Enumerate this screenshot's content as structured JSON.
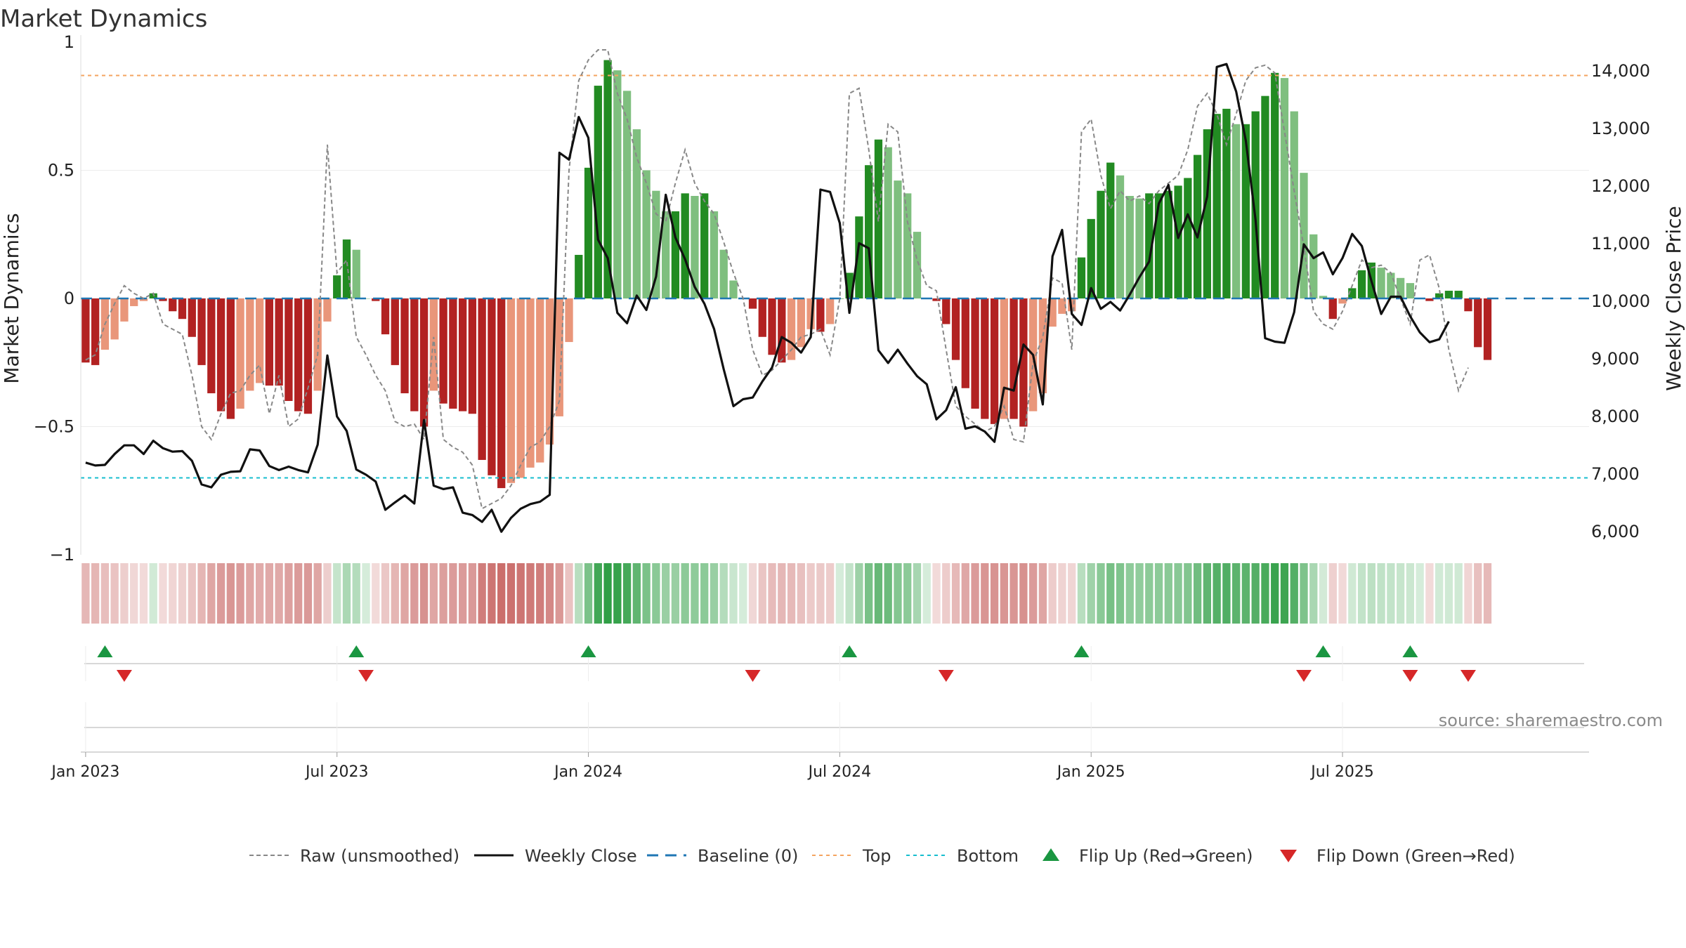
{
  "chart_data": {
    "type": "bar",
    "title": "Market Dynamics",
    "ylabel_left": "Market Dynamics",
    "ylabel_right": "Weekly Close Price",
    "source": "source: sharemaestro.com",
    "left_axis": {
      "ylim": [
        -1,
        1
      ],
      "ticks": [
        {
          "v": 1,
          "label": "1"
        },
        {
          "v": 0.5,
          "label": "0.5"
        },
        {
          "v": 0,
          "label": "0"
        },
        {
          "v": -0.5,
          "label": "−0.5"
        },
        {
          "v": -1,
          "label": "−1"
        }
      ]
    },
    "right_axis": {
      "ylim": [
        5600,
        14500
      ],
      "ticks": [
        {
          "v": 14000,
          "label": "14,000"
        },
        {
          "v": 13000,
          "label": "13,000"
        },
        {
          "v": 12000,
          "label": "12,000"
        },
        {
          "v": 11000,
          "label": "11,000"
        },
        {
          "v": 10000,
          "label": "10,000"
        },
        {
          "v": 9000,
          "label": "9,000"
        },
        {
          "v": 8000,
          "label": "8,000"
        },
        {
          "v": 7000,
          "label": "7,000"
        },
        {
          "v": 6000,
          "label": "6,000"
        }
      ]
    },
    "x_axis": {
      "type": "date",
      "start": "2023-01-02",
      "weeks": 156,
      "ticks": [
        {
          "week": 0,
          "label": "Jan 2023"
        },
        {
          "week": 26,
          "label": "Jul 2023"
        },
        {
          "week": 52,
          "label": "Jan 2024"
        },
        {
          "week": 78,
          "label": "Jul 2024"
        },
        {
          "week": 104,
          "label": "Jan 2025"
        },
        {
          "week": 130,
          "label": "Jul 2025"
        }
      ]
    },
    "reference_lines": {
      "top": 0.87,
      "bottom": -0.7,
      "baseline": 0
    },
    "series": [
      {
        "name": "Market Dynamics (smoothed)",
        "type": "bar",
        "values": [
          -0.25,
          -0.26,
          -0.2,
          -0.16,
          -0.09,
          -0.03,
          -0.01,
          0.02,
          -0.01,
          -0.05,
          -0.08,
          -0.15,
          -0.26,
          -0.37,
          -0.44,
          -0.47,
          -0.43,
          -0.36,
          -0.33,
          -0.34,
          -0.34,
          -0.4,
          -0.44,
          -0.45,
          -0.36,
          -0.09,
          0.09,
          0.23,
          0.19,
          0.0,
          -0.01,
          -0.14,
          -0.26,
          -0.37,
          -0.44,
          -0.5,
          -0.36,
          -0.41,
          -0.43,
          -0.44,
          -0.45,
          -0.63,
          -0.69,
          -0.74,
          -0.72,
          -0.7,
          -0.66,
          -0.64,
          -0.57,
          -0.46,
          -0.17,
          0.17,
          0.51,
          0.83,
          0.93,
          0.89,
          0.81,
          0.66,
          0.5,
          0.42,
          0.34,
          0.34,
          0.41,
          0.4,
          0.41,
          0.34,
          0.19,
          0.07,
          0.0,
          -0.04,
          -0.15,
          -0.22,
          -0.25,
          -0.24,
          -0.19,
          -0.12,
          -0.13,
          -0.1,
          0.0,
          0.1,
          0.32,
          0.52,
          0.62,
          0.59,
          0.46,
          0.41,
          0.26,
          0.0,
          -0.01,
          -0.1,
          -0.24,
          -0.35,
          -0.43,
          -0.47,
          -0.49,
          -0.47,
          -0.47,
          -0.5,
          -0.44,
          -0.37,
          -0.11,
          -0.06,
          -0.05,
          0.16,
          0.31,
          0.42,
          0.53,
          0.48,
          0.4,
          0.39,
          0.41,
          0.41,
          0.42,
          0.44,
          0.47,
          0.56,
          0.66,
          0.72,
          0.74,
          0.68,
          0.68,
          0.73,
          0.79,
          0.88,
          0.86,
          0.73,
          0.49,
          0.25,
          0.01,
          -0.08,
          -0.02,
          0.04,
          0.11,
          0.14,
          0.12,
          0.1,
          0.08,
          0.06,
          0.0,
          -0.01,
          0.02,
          0.03,
          0.03,
          -0.05,
          -0.19,
          -0.24
        ]
      },
      {
        "name": "Raw (unsmoothed)",
        "type": "line",
        "values": [
          -0.24,
          -0.22,
          -0.1,
          -0.02,
          0.05,
          0.02,
          0.0,
          0.02,
          -0.1,
          -0.12,
          -0.14,
          -0.3,
          -0.5,
          -0.55,
          -0.45,
          -0.37,
          -0.36,
          -0.3,
          -0.26,
          -0.45,
          -0.3,
          -0.5,
          -0.47,
          -0.35,
          -0.22,
          0.6,
          0.1,
          0.15,
          -0.15,
          -0.22,
          -0.3,
          -0.36,
          -0.48,
          -0.5,
          -0.49,
          -0.55,
          -0.15,
          -0.55,
          -0.58,
          -0.6,
          -0.65,
          -0.82,
          -0.8,
          -0.78,
          -0.73,
          -0.65,
          -0.58,
          -0.56,
          -0.5,
          -0.4,
          0.5,
          0.85,
          0.93,
          0.97,
          0.97,
          0.8,
          0.7,
          0.55,
          0.45,
          0.33,
          0.3,
          0.45,
          0.58,
          0.45,
          0.38,
          0.33,
          0.22,
          0.1,
          0.0,
          -0.2,
          -0.3,
          -0.28,
          -0.24,
          -0.2,
          -0.15,
          -0.14,
          -0.12,
          -0.22,
          0.0,
          0.8,
          0.82,
          0.58,
          0.3,
          0.68,
          0.65,
          0.3,
          0.15,
          0.05,
          0.03,
          -0.2,
          -0.42,
          -0.46,
          -0.49,
          -0.52,
          -0.5,
          -0.42,
          -0.55,
          -0.56,
          -0.25,
          -0.15,
          0.08,
          0.06,
          -0.2,
          0.65,
          0.7,
          0.48,
          0.35,
          0.42,
          0.38,
          0.4,
          0.37,
          0.42,
          0.45,
          0.48,
          0.58,
          0.75,
          0.8,
          0.72,
          0.6,
          0.72,
          0.85,
          0.9,
          0.91,
          0.88,
          0.65,
          0.42,
          0.2,
          -0.05,
          -0.1,
          -0.12,
          -0.05,
          0.05,
          0.15,
          0.12,
          0.13,
          0.1,
          0.0,
          -0.1,
          0.15,
          0.17,
          0.04,
          -0.2,
          -0.36,
          -0.27
        ]
      },
      {
        "name": "Weekly Close",
        "type": "line",
        "axis": "right",
        "values": [
          7200,
          7150,
          7160,
          7350,
          7500,
          7500,
          7350,
          7580,
          7450,
          7390,
          7400,
          7230,
          6820,
          6770,
          6990,
          7040,
          7050,
          7430,
          7410,
          7140,
          7070,
          7130,
          7070,
          7030,
          7510,
          9060,
          8000,
          7750,
          7080,
          6990,
          6870,
          6380,
          6510,
          6630,
          6490,
          7940,
          6800,
          6740,
          6770,
          6330,
          6290,
          6170,
          6380,
          6000,
          6240,
          6400,
          6480,
          6520,
          6640,
          12580,
          12460,
          13200,
          12840,
          11070,
          10750,
          9800,
          9620,
          10100,
          9850,
          10430,
          11850,
          11110,
          10730,
          10250,
          9960,
          9520,
          8820,
          8180,
          8300,
          8330,
          8610,
          8850,
          9380,
          9280,
          9110,
          9380,
          11940,
          11900,
          11360,
          9800,
          11010,
          10920,
          9150,
          8930,
          9160,
          8920,
          8700,
          8560,
          7950,
          8110,
          8510,
          7790,
          7830,
          7740,
          7560,
          8500,
          8450,
          9250,
          9070,
          8210,
          10780,
          11240,
          9780,
          9590,
          10230,
          9870,
          9990,
          9840,
          10120,
          10420,
          10690,
          11700,
          12020,
          11100,
          11510,
          11110,
          11820,
          14070,
          14120,
          13640,
          12790,
          11420,
          9360,
          9300,
          9280,
          9810,
          10990,
          10750,
          10850,
          10470,
          10750,
          11170,
          10960,
          10350,
          9780,
          10080,
          10080,
          9740,
          9460,
          9290,
          9340,
          9650
        ]
      }
    ],
    "flip_up_weeks": [
      2,
      28,
      52,
      79,
      103,
      128,
      137
    ],
    "flip_down_weeks": [
      4,
      29,
      69,
      89,
      126,
      137,
      143
    ],
    "legend": [
      {
        "key": "raw",
        "label": "Raw (unsmoothed)"
      },
      {
        "key": "close",
        "label": "Weekly Close"
      },
      {
        "key": "baseline",
        "label": "Baseline (0)"
      },
      {
        "key": "top",
        "label": "Top"
      },
      {
        "key": "bottom",
        "label": "Bottom"
      },
      {
        "key": "flipup",
        "label": "Flip Up (Red→Green)"
      },
      {
        "key": "flipdown",
        "label": "Flip Down (Green→Red)"
      }
    ],
    "colors": {
      "strong_green": "#228B22",
      "light_green": "#7fbf7f",
      "strong_red": "#b22222",
      "light_red": "#e9967a",
      "raw_line": "#888888",
      "close_line": "#111111",
      "baseline": "#1f77b4",
      "top": "#f4a460",
      "bottom": "#17becf",
      "flip_up": "#1a9641",
      "flip_down": "#d62728"
    }
  }
}
